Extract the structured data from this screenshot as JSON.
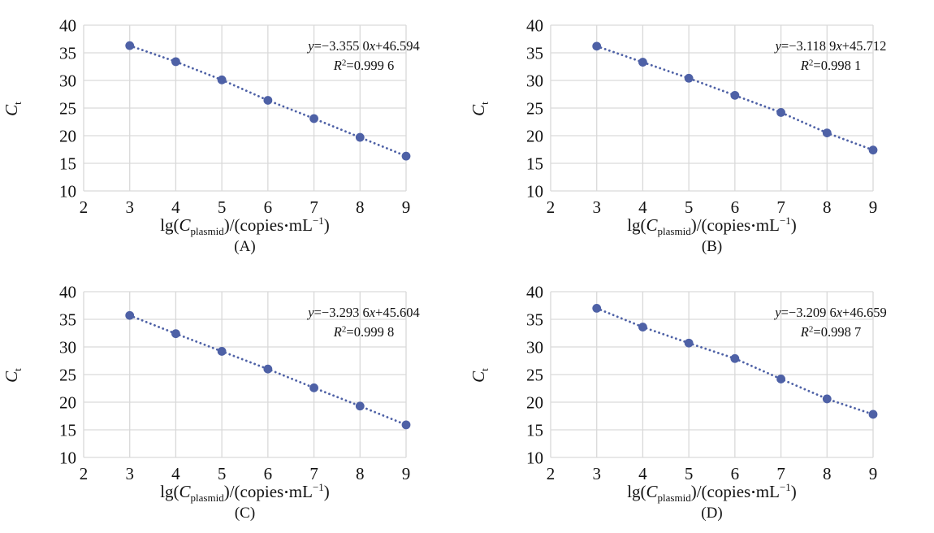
{
  "styles": {
    "accent": "#4E61A6",
    "grid_color": "#D9D9D9",
    "text_color": "#111111",
    "background": "#ffffff"
  },
  "labels": {
    "ylabel_main": "C",
    "ylabel_sub": "t",
    "xlabel_parts": {
      "p1": "lg(",
      "c": "C",
      "sub": "plasmid",
      "p2": ")/(copies",
      "dot": "•",
      "p3": "mL",
      "sup": "−1",
      "p4": ")"
    }
  },
  "chart_data": [
    {
      "panel": "(A)",
      "type": "scatter",
      "x": [
        3,
        4,
        5,
        6,
        7,
        8,
        9
      ],
      "y": [
        36.3,
        33.4,
        30.1,
        26.4,
        23.1,
        19.7,
        16.3
      ],
      "equation": "y=−3.355 0x+46.594",
      "r_squared": "R²=0.999 6",
      "eq_mid": "=−3.355 0",
      "eq_tail": "+46.594",
      "r2_val": "=0.999 6",
      "xlabel": "lg(C_plasmid)/(copies•mL−1)",
      "ylabel": "C_t",
      "xlim": [
        2,
        9
      ],
      "ylim": [
        10,
        40
      ],
      "xticks": [
        2,
        3,
        4,
        5,
        6,
        7,
        8,
        9
      ],
      "yticks": [
        10,
        15,
        20,
        25,
        30,
        35,
        40
      ],
      "grid": true,
      "line_style": "dotted",
      "marker_color": "#4E61A6"
    },
    {
      "panel": "(B)",
      "type": "scatter",
      "x": [
        3,
        4,
        5,
        6,
        7,
        8,
        9
      ],
      "y": [
        36.2,
        33.3,
        30.4,
        27.3,
        24.2,
        20.5,
        17.4
      ],
      "equation": "y=−3.118 9x+45.712",
      "r_squared": "R²=0.998 1",
      "eq_mid": "=−3.118 9",
      "eq_tail": "+45.712",
      "r2_val": "=0.998 1",
      "xlabel": "lg(C_plasmid)/(copies•mL−1)",
      "ylabel": "C_t",
      "xlim": [
        2,
        9
      ],
      "ylim": [
        10,
        40
      ],
      "xticks": [
        2,
        3,
        4,
        5,
        6,
        7,
        8,
        9
      ],
      "yticks": [
        10,
        15,
        20,
        25,
        30,
        35,
        40
      ],
      "grid": true,
      "line_style": "dotted",
      "marker_color": "#4E61A6"
    },
    {
      "panel": "(C)",
      "type": "scatter",
      "x": [
        3,
        4,
        5,
        6,
        7,
        8,
        9
      ],
      "y": [
        35.7,
        32.4,
        29.2,
        26.0,
        22.6,
        19.3,
        15.9
      ],
      "equation": "y=−3.293 6x+45.604",
      "r_squared": "R²=0.999 8",
      "eq_mid": "=−3.293 6",
      "eq_tail": "+45.604",
      "r2_val": "=0.999 8",
      "xlabel": "lg(C_plasmid)/(copies•mL−1)",
      "ylabel": "C_t",
      "xlim": [
        2,
        9
      ],
      "ylim": [
        10,
        40
      ],
      "xticks": [
        2,
        3,
        4,
        5,
        6,
        7,
        8,
        9
      ],
      "yticks": [
        10,
        15,
        20,
        25,
        30,
        35,
        40
      ],
      "grid": true,
      "line_style": "dotted",
      "marker_color": "#4E61A6"
    },
    {
      "panel": "(D)",
      "type": "scatter",
      "x": [
        3,
        4,
        5,
        6,
        7,
        8,
        9
      ],
      "y": [
        37.0,
        33.6,
        30.7,
        27.9,
        24.2,
        20.6,
        17.8
      ],
      "equation": "y=−3.209 6x+46.659",
      "r_squared": "R²=0.998 7",
      "eq_mid": "=−3.209 6",
      "eq_tail": "+46.659",
      "r2_val": "=0.998 7",
      "xlabel": "lg(C_plasmid)/(copies•mL−1)",
      "ylabel": "C_t",
      "xlim": [
        2,
        9
      ],
      "ylim": [
        10,
        40
      ],
      "xticks": [
        2,
        3,
        4,
        5,
        6,
        7,
        8,
        9
      ],
      "yticks": [
        10,
        15,
        20,
        25,
        30,
        35,
        40
      ],
      "grid": true,
      "line_style": "dotted",
      "marker_color": "#4E61A6"
    }
  ]
}
